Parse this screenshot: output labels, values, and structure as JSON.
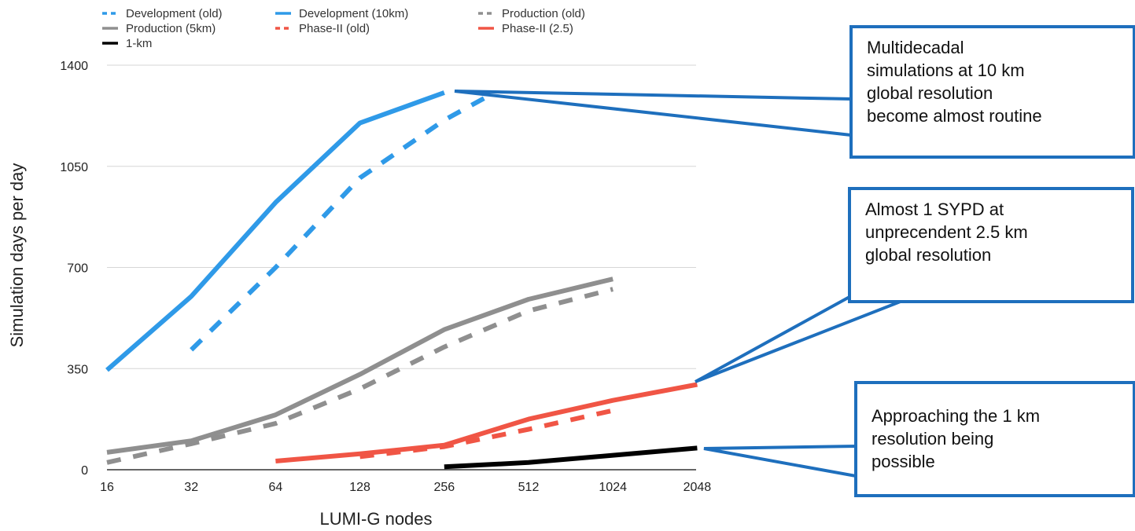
{
  "chart_data": {
    "type": "line",
    "title": "",
    "xlabel": "LUMI-G nodes",
    "ylabel": "Simulation days per day",
    "x_scale": "log2",
    "categories": [
      "16",
      "32",
      "64",
      "128",
      "256",
      "512",
      "1024",
      "2048"
    ],
    "x_values": [
      16,
      32,
      64,
      128,
      256,
      512,
      1024,
      2048
    ],
    "yticks": [
      0,
      350,
      700,
      1050,
      1400
    ],
    "ylim": [
      0,
      1400
    ],
    "grid": "horizontal",
    "legend_position": "top",
    "series": [
      {
        "name": "Development (old)",
        "color": "#2f9ae8",
        "dash": true,
        "points": [
          [
            32,
            415
          ],
          [
            64,
            700
          ],
          [
            128,
            1010
          ],
          [
            256,
            1210
          ],
          [
            362,
            1290
          ]
        ]
      },
      {
        "name": "Development (10km)",
        "color": "#2f9ae8",
        "dash": false,
        "points": [
          [
            16,
            345
          ],
          [
            32,
            600
          ],
          [
            64,
            925
          ],
          [
            128,
            1200
          ],
          [
            256,
            1305
          ]
        ]
      },
      {
        "name": "Production (old)",
        "color": "#8f8f8f",
        "dash": true,
        "points": [
          [
            16,
            25
          ],
          [
            32,
            90
          ],
          [
            64,
            160
          ],
          [
            128,
            280
          ],
          [
            256,
            425
          ],
          [
            512,
            550
          ],
          [
            1024,
            625
          ]
        ]
      },
      {
        "name": "Production (5km)",
        "color": "#8f8f8f",
        "dash": false,
        "points": [
          [
            16,
            60
          ],
          [
            32,
            100
          ],
          [
            64,
            190
          ],
          [
            128,
            330
          ],
          [
            256,
            485
          ],
          [
            512,
            590
          ],
          [
            1024,
            660
          ]
        ]
      },
      {
        "name": "Phase-II (old)",
        "color": "#f05545",
        "dash": true,
        "points": [
          [
            128,
            45
          ],
          [
            256,
            80
          ],
          [
            512,
            140
          ],
          [
            1024,
            205
          ]
        ]
      },
      {
        "name": "Phase-II (2.5)",
        "color": "#f05545",
        "dash": false,
        "points": [
          [
            64,
            30
          ],
          [
            128,
            55
          ],
          [
            256,
            85
          ],
          [
            512,
            175
          ],
          [
            1024,
            240
          ],
          [
            2048,
            295
          ]
        ]
      },
      {
        "name": "1-km",
        "color": "#000000",
        "dash": false,
        "points": [
          [
            256,
            10
          ],
          [
            512,
            25
          ],
          [
            1024,
            50
          ],
          [
            2048,
            75
          ]
        ]
      }
    ],
    "annotations": [
      {
        "text": "Multidecadal simulations at 10 km global resolution become almost routine"
      },
      {
        "text": "Almost 1 SYPD at unprecendent 2.5 km global resolution"
      },
      {
        "text": "Approaching the 1 km resolution being possible"
      }
    ]
  },
  "callouts": [
    {
      "lines": [
        "Multidecadal",
        "simulations at 10 km",
        "global resolution",
        "become almost routine"
      ]
    },
    {
      "lines": [
        "Almost 1 SYPD at",
        "unprecendent 2.5 km",
        "global resolution"
      ]
    },
    {
      "lines": [
        "Approaching the 1 km",
        "resolution being",
        "possible"
      ]
    }
  ],
  "callout_color": "#1e6fbd"
}
